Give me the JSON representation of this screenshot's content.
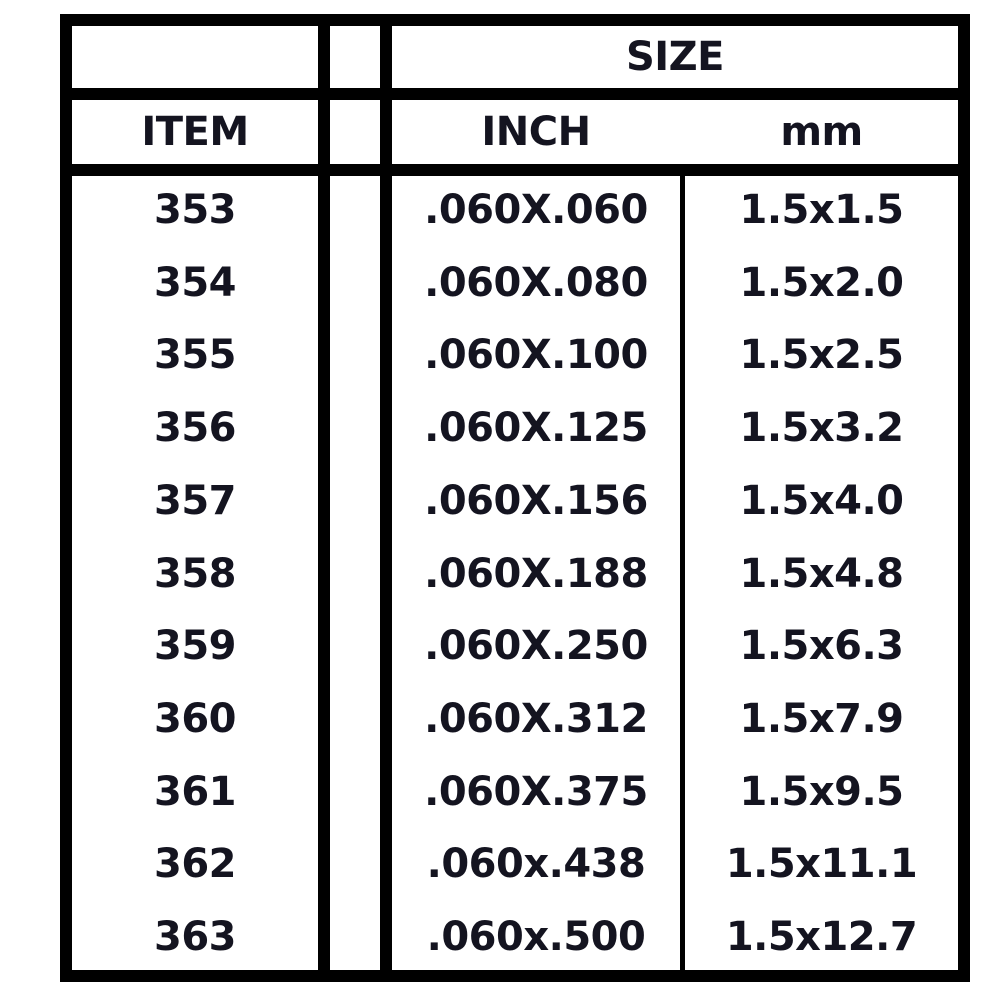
{
  "table": {
    "header_size": "SIZE",
    "header_item": "ITEM",
    "header_inch": "INCH",
    "header_mm": "mm",
    "rows": [
      {
        "item": "353",
        "inch": ".060X.060",
        "mm": "1.5x1.5"
      },
      {
        "item": "354",
        "inch": ".060X.080",
        "mm": "1.5x2.0"
      },
      {
        "item": "355",
        "inch": ".060X.100",
        "mm": "1.5x2.5"
      },
      {
        "item": "356",
        "inch": ".060X.125",
        "mm": "1.5x3.2"
      },
      {
        "item": "357",
        "inch": ".060X.156",
        "mm": "1.5x4.0"
      },
      {
        "item": "358",
        "inch": ".060X.188",
        "mm": "1.5x4.8"
      },
      {
        "item": "359",
        "inch": ".060X.250",
        "mm": "1.5x6.3"
      },
      {
        "item": "360",
        "inch": ".060X.312",
        "mm": "1.5x7.9"
      },
      {
        "item": "361",
        "inch": ".060X.375",
        "mm": "1.5x9.5"
      },
      {
        "item": "362",
        "inch": ".060x.438",
        "mm": "1.5x11.1"
      },
      {
        "item": "363",
        "inch": ".060x.500",
        "mm": "1.5x12.7"
      }
    ]
  }
}
